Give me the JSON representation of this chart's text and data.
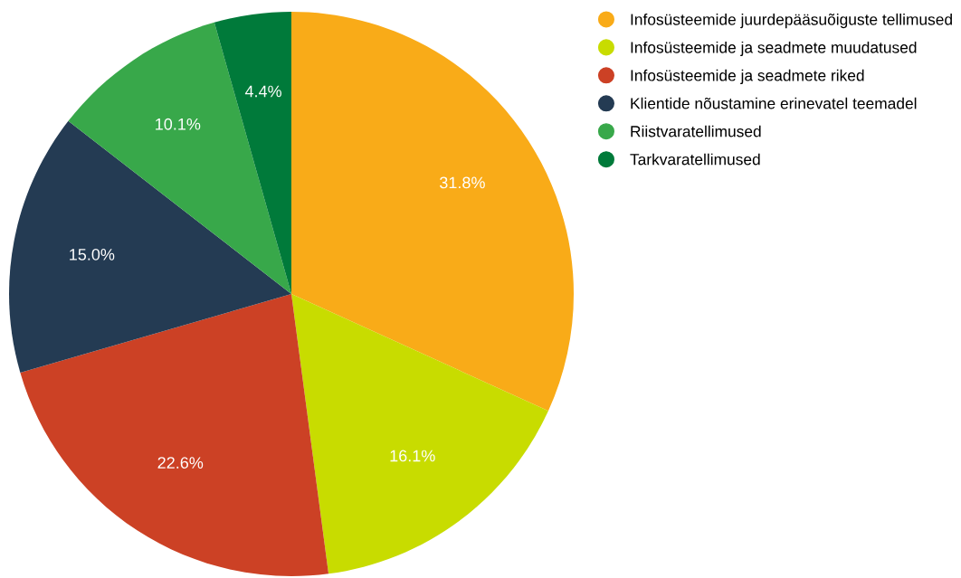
{
  "chart_data": {
    "type": "pie",
    "categories": [
      "Infosüsteemide juurdepääsuõiguste tellimused",
      "Infosüsteemide ja seadmete muudatused",
      "Infosüsteemide ja seadmete riked",
      "Klientide nõustamine erinevatel teemadel",
      "Riistvaratellimused",
      "Tarkvaratellimused"
    ],
    "values": [
      31.8,
      16.1,
      22.6,
      15.0,
      10.1,
      4.4
    ],
    "colors": [
      "#f9ab18",
      "#c8dc00",
      "#cc4125",
      "#243b53",
      "#38a84a",
      "#007a3a"
    ],
    "value_labels": [
      "31.8%",
      "16.1%",
      "22.6%",
      "15.0%",
      "10.1%",
      "4.4%"
    ],
    "legend": "top right"
  }
}
